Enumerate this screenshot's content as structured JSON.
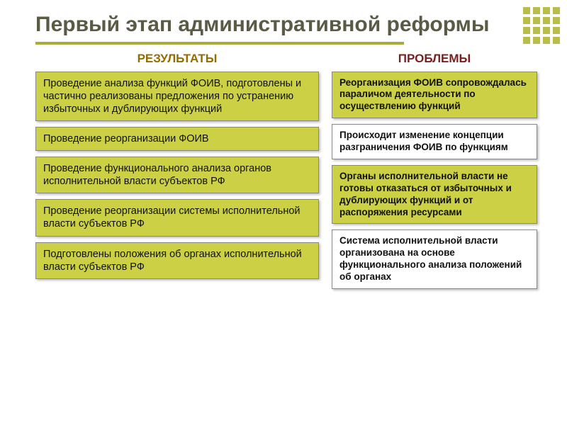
{
  "title": "Первый этап административной реформы",
  "colors": {
    "title_text": "#5a5a45",
    "underline": "#a9ad3c",
    "olive_box": "#cbd045",
    "white_box": "#ffffff",
    "results_header": "#946c00",
    "problems_header": "#7a1f1f",
    "decor_square": "#b9bd4a",
    "box_border": "#888888",
    "box_shadow": "rgba(0,0,0,0.25)"
  },
  "typography": {
    "title_fontsize": 30,
    "header_fontsize": 17,
    "left_box_fontsize": 14.5,
    "right_box_fontsize": 13.5
  },
  "layout": {
    "slide_width": 800,
    "slide_height": 600,
    "left_col_width": 400,
    "right_col_width": 290,
    "column_gap": 18,
    "box_margin_bottom": 8,
    "underline_width": 520,
    "underline_height": 4
  },
  "left": {
    "header": "РЕЗУЛЬТАТЫ",
    "boxes": [
      "Проведение анализа функций ФОИВ, подготовлены  и частично реализованы предложения по устранению избыточных и дублирующих функций",
      "Проведение реорганизации ФОИВ",
      "Проведение функционального анализа органов исполнительной власти субъектов РФ",
      "Проведение реорганизации системы исполнительной власти субъектов РФ",
      "Подготовлены положения об органах исполнительной власти субъектов РФ"
    ]
  },
  "right": {
    "header": "ПРОБЛЕМЫ",
    "boxes": [
      "Реорганизация ФОИВ сопровождалась параличом деятельности по осуществлению функций",
      "Происходит изменение концепции разграничения ФОИВ по функциям",
      "Органы исполнительной власти не готовы отказаться от избыточных и дублирующих функций и от распоряжения ресурсами",
      "Система исполнительной власти организована на основе функционального анализа положений об органах"
    ]
  }
}
